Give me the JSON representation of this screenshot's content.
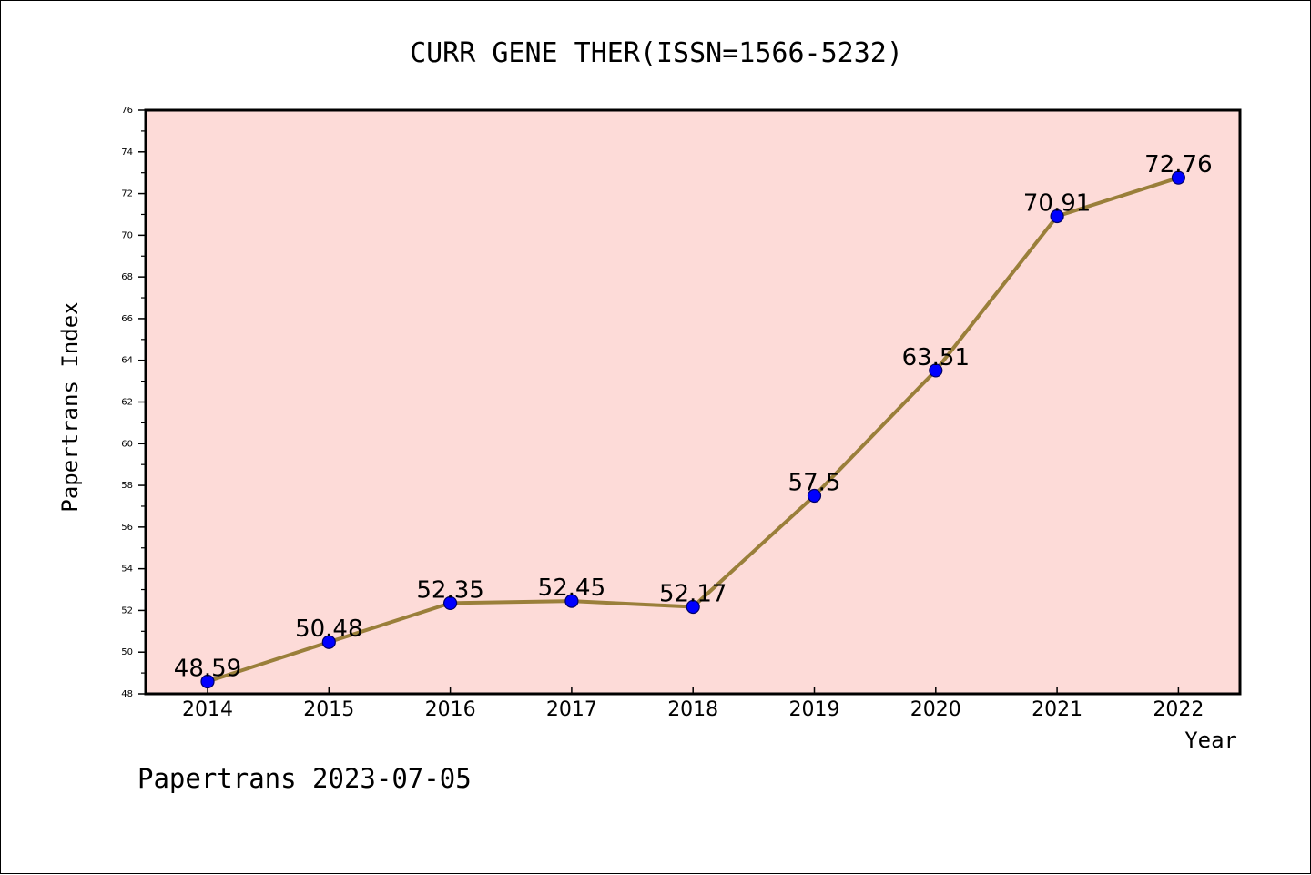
{
  "chart_data": {
    "type": "line",
    "title": "CURR GENE THER(ISSN=1566-5232)",
    "xlabel": "Year",
    "ylabel": "Papertrans Index",
    "categories": [
      "2014",
      "2015",
      "2016",
      "2017",
      "2018",
      "2019",
      "2020",
      "2021",
      "2022"
    ],
    "values": [
      48.59,
      50.48,
      52.35,
      52.45,
      52.17,
      57.5,
      63.51,
      70.91,
      72.76
    ],
    "data_labels": [
      "48.59",
      "50.48",
      "52.35",
      "52.45",
      "52.17",
      "57.5",
      "63.51",
      "70.91",
      "72.76"
    ],
    "ylim": [
      48,
      76
    ],
    "y_ticks": [
      "48",
      "50",
      "52",
      "54",
      "56",
      "58",
      "60",
      "62",
      "64",
      "66",
      "68",
      "70",
      "72",
      "74",
      "76"
    ],
    "grid": false,
    "legend": "none",
    "colors": {
      "plot_background": "#fddbd8",
      "line": "#9a7f3a",
      "marker": "#0000ff",
      "marker_edge": "#000066",
      "axes": "#000000"
    }
  },
  "footer": "Papertrans 2023-07-05"
}
